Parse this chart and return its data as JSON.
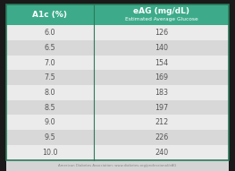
{
  "header_col1": "A1c (%)",
  "header_col2": "eAG (mg/dL)",
  "header_subtitle": "Estimated Average Glucose",
  "rows": [
    [
      "6.0",
      "126"
    ],
    [
      "6.5",
      "140"
    ],
    [
      "7.0",
      "154"
    ],
    [
      "7.5",
      "169"
    ],
    [
      "8.0",
      "183"
    ],
    [
      "8.5",
      "197"
    ],
    [
      "9.0",
      "212"
    ],
    [
      "9.5",
      "226"
    ],
    [
      "10.0",
      "240"
    ]
  ],
  "footer": "American Diabetes Association: www.diabetes.org/professional/eAG",
  "header_bg": "#3dab8a",
  "row_bg_even": "#ebebeb",
  "row_bg_odd": "#d8d8d8",
  "header_text_color": "#ffffff",
  "row_text_color": "#555555",
  "footer_text_color": "#888888",
  "border_color": "#2a7a5a",
  "fig_bg": "#1a1a1a",
  "table_bg": "#ffffff",
  "col_split": 0.4
}
